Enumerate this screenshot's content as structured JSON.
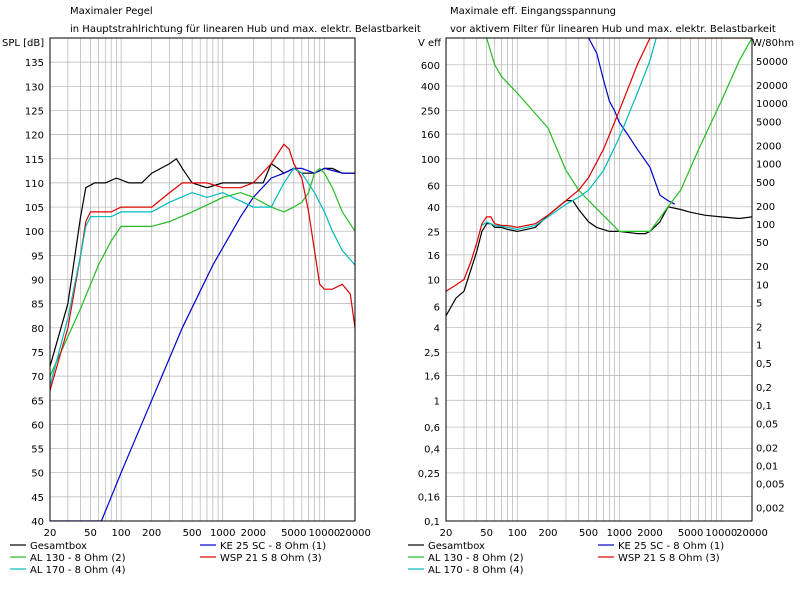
{
  "colors": {
    "gesamtbox": "#000000",
    "ke25": "#0000cc",
    "al130": "#22bb22",
    "wsp21": "#dd0000",
    "al170": "#00bbbb",
    "grid": "#b4b4b4",
    "frame": "#000000"
  },
  "chart_data": [
    {
      "type": "line",
      "title": "Maximaler Pegel",
      "subtitle": "in Hauptstrahlrichtung für linearen Hub und max. elektr. Belastbarkeit",
      "ylabel": "SPL [dB]",
      "xlabel": "",
      "xscale": "log",
      "xlim": [
        20,
        20000
      ],
      "ylim": [
        40,
        140
      ],
      "xticks": [
        20,
        50,
        100,
        200,
        500,
        1000,
        2000,
        5000,
        10000,
        20000
      ],
      "xtick_labels": [
        "20",
        "50",
        "100",
        "200",
        "500",
        "1000",
        "2000",
        "5000",
        "10000",
        "20000"
      ],
      "yticks": [
        40,
        45,
        50,
        55,
        60,
        65,
        70,
        75,
        80,
        85,
        90,
        95,
        100,
        105,
        110,
        115,
        120,
        125,
        130,
        135
      ],
      "grid": true,
      "legend": [
        "Gesamtbox",
        "KE 25 SC - 8 Ohm   (1)",
        "AL 130 - 8 Ohm (2)",
        "WSP 21 S 8 Ohm (3)",
        "AL 170 - 8 Ohm (4)"
      ],
      "series": [
        {
          "name": "Gesamtbox",
          "color": "gesamtbox",
          "points": [
            [
              20,
              72
            ],
            [
              30,
              85
            ],
            [
              40,
              103
            ],
            [
              45,
              109
            ],
            [
              55,
              110
            ],
            [
              70,
              110
            ],
            [
              90,
              111
            ],
            [
              120,
              110
            ],
            [
              160,
              110
            ],
            [
              200,
              112
            ],
            [
              300,
              114
            ],
            [
              350,
              115
            ],
            [
              400,
              113
            ],
            [
              500,
              110
            ],
            [
              700,
              109
            ],
            [
              1000,
              110
            ],
            [
              1500,
              110
            ],
            [
              2000,
              110
            ],
            [
              2500,
              110
            ],
            [
              3000,
              114
            ],
            [
              3500,
              113
            ],
            [
              4000,
              112
            ],
            [
              5000,
              113
            ],
            [
              6000,
              112
            ],
            [
              8000,
              112
            ],
            [
              10000,
              113
            ],
            [
              12000,
              113
            ],
            [
              15000,
              112
            ],
            [
              20000,
              112
            ]
          ]
        },
        {
          "name": "KE 25 SC - 8 Ohm   (1)",
          "color": "ke25",
          "points": [
            [
              20,
              40
            ],
            [
              64,
              40
            ],
            [
              100,
              50
            ],
            [
              200,
              65
            ],
            [
              400,
              80
            ],
            [
              800,
              93
            ],
            [
              1500,
              103
            ],
            [
              2000,
              107
            ],
            [
              3000,
              111
            ],
            [
              4000,
              112
            ],
            [
              5000,
              113
            ],
            [
              6000,
              113
            ],
            [
              8000,
              112
            ],
            [
              10000,
              113
            ],
            [
              15000,
              112
            ],
            [
              20000,
              112
            ]
          ]
        },
        {
          "name": "AL 130 - 8 Ohm (2)",
          "color": "al130",
          "points": [
            [
              20,
              70
            ],
            [
              40,
              84
            ],
            [
              60,
              93
            ],
            [
              80,
              98
            ],
            [
              100,
              101
            ],
            [
              150,
              101
            ],
            [
              200,
              101
            ],
            [
              300,
              102
            ],
            [
              500,
              104
            ],
            [
              800,
              106
            ],
            [
              1000,
              107
            ],
            [
              1500,
              108
            ],
            [
              2000,
              107
            ],
            [
              3000,
              105
            ],
            [
              4000,
              104
            ],
            [
              5000,
              105
            ],
            [
              6000,
              106
            ],
            [
              7000,
              108
            ],
            [
              8000,
              112
            ],
            [
              9000,
              113
            ],
            [
              10000,
              112
            ],
            [
              12000,
              109
            ],
            [
              15000,
              104
            ],
            [
              20000,
              100
            ]
          ]
        },
        {
          "name": "WSP 21 S 8 Ohm (3)",
          "color": "wsp21",
          "points": [
            [
              20,
              67
            ],
            [
              30,
              80
            ],
            [
              40,
              95
            ],
            [
              45,
              102
            ],
            [
              50,
              104
            ],
            [
              60,
              104
            ],
            [
              80,
              104
            ],
            [
              100,
              105
            ],
            [
              150,
              105
            ],
            [
              200,
              105
            ],
            [
              300,
              108
            ],
            [
              400,
              110
            ],
            [
              500,
              110
            ],
            [
              700,
              110
            ],
            [
              1000,
              109
            ],
            [
              1500,
              109
            ],
            [
              2000,
              110
            ],
            [
              3000,
              114
            ],
            [
              4000,
              118
            ],
            [
              4500,
              117
            ],
            [
              5000,
              114
            ],
            [
              6000,
              111
            ],
            [
              7000,
              104
            ],
            [
              8000,
              96
            ],
            [
              9000,
              89
            ],
            [
              10000,
              88
            ],
            [
              12000,
              88
            ],
            [
              15000,
              89
            ],
            [
              18000,
              87
            ],
            [
              20000,
              80
            ]
          ]
        },
        {
          "name": "AL 170 - 8 Ohm (4)",
          "color": "al170",
          "points": [
            [
              20,
              68
            ],
            [
              30,
              82
            ],
            [
              40,
              95
            ],
            [
              45,
              101
            ],
            [
              50,
              103
            ],
            [
              80,
              103
            ],
            [
              100,
              104
            ],
            [
              150,
              104
            ],
            [
              200,
              104
            ],
            [
              300,
              106
            ],
            [
              500,
              108
            ],
            [
              700,
              107
            ],
            [
              1000,
              108
            ],
            [
              2000,
              105
            ],
            [
              3000,
              105
            ],
            [
              4000,
              110
            ],
            [
              5000,
              113
            ],
            [
              6000,
              112
            ],
            [
              8000,
              108
            ],
            [
              10000,
              104
            ],
            [
              12000,
              100
            ],
            [
              15000,
              96
            ],
            [
              20000,
              93
            ]
          ]
        }
      ]
    },
    {
      "type": "line",
      "title": "Maximale eff. Eingangsspannung",
      "subtitle": "vor aktivem Filter für linearen Hub und max. elektr. Belastbarkeit",
      "ylabel": "V eff",
      "ylabel_right": "W/80hm",
      "xlabel": "",
      "xscale": "log",
      "yscale": "log",
      "xlim": [
        20,
        20000
      ],
      "ylim": [
        0.1,
        1000
      ],
      "xticks": [
        20,
        50,
        100,
        200,
        500,
        1000,
        2000,
        5000,
        10000,
        20000
      ],
      "xtick_labels": [
        "20",
        "50",
        "100",
        "200",
        "500",
        "1000",
        "2000",
        "5000",
        "10000",
        "20000"
      ],
      "yticks": [
        600,
        400,
        250,
        160,
        100,
        60,
        40,
        25,
        16,
        10,
        6,
        4,
        2.5,
        1.6,
        1,
        0.6,
        0.4,
        0.25,
        0.16,
        0.1
      ],
      "ytick_labels": [
        "600",
        "400",
        "250",
        "160",
        "100",
        "60",
        "40",
        "25",
        "16",
        "10",
        "6",
        "4",
        "2,5",
        "1,6",
        "1",
        "0,6",
        "0,4",
        "0,25",
        "0,16",
        "0,1"
      ],
      "yticks_right": [
        50000,
        20000,
        10000,
        5000,
        2000,
        1000,
        500,
        200,
        100,
        50,
        20,
        10,
        5,
        2,
        1,
        0.5,
        0.2,
        0.1,
        0.05,
        0.02,
        0.01,
        0.005,
        0.002
      ],
      "ytick_labels_right": [
        "50000",
        "20000",
        "10000",
        "5000",
        "2000",
        "1000",
        "500",
        "200",
        "100",
        "50",
        "20",
        "10",
        "5",
        "2",
        "1",
        "0,5",
        "0,2",
        "0,1",
        "0,05",
        "0,02",
        "0,01",
        "0,005",
        "0,002"
      ],
      "grid": true,
      "legend": [
        "Gesamtbox",
        "KE 25 SC - 8 Ohm   (1)",
        "AL 130 - 8 Ohm (2)",
        "WSP 21 S 8 Ohm (3)",
        "AL 170 - 8 Ohm (4)"
      ],
      "series": [
        {
          "name": "Gesamtbox",
          "color": "gesamtbox",
          "points": [
            [
              20,
              5
            ],
            [
              25,
              7
            ],
            [
              30,
              8
            ],
            [
              35,
              12
            ],
            [
              40,
              17
            ],
            [
              45,
              25
            ],
            [
              50,
              29
            ],
            [
              55,
              29
            ],
            [
              60,
              27
            ],
            [
              70,
              27
            ],
            [
              80,
              26
            ],
            [
              100,
              25
            ],
            [
              150,
              27
            ],
            [
              200,
              34
            ],
            [
              300,
              45
            ],
            [
              350,
              45
            ],
            [
              400,
              38
            ],
            [
              500,
              30
            ],
            [
              600,
              27
            ],
            [
              800,
              25
            ],
            [
              1000,
              25
            ],
            [
              1500,
              24
            ],
            [
              1800,
              24
            ],
            [
              2000,
              25
            ],
            [
              2500,
              30
            ],
            [
              3000,
              40
            ],
            [
              4000,
              38
            ],
            [
              5000,
              36
            ],
            [
              7000,
              34
            ],
            [
              10000,
              33
            ],
            [
              15000,
              32
            ],
            [
              20000,
              33
            ]
          ]
        },
        {
          "name": "KE 25 SC - 8 Ohm   (1)",
          "color": "ke25",
          "points": [
            [
              500,
              1000
            ],
            [
              600,
              750
            ],
            [
              700,
              450
            ],
            [
              800,
              300
            ],
            [
              900,
              250
            ],
            [
              1000,
              200
            ],
            [
              1200,
              160
            ],
            [
              1500,
              120
            ],
            [
              2000,
              85
            ],
            [
              2500,
              50
            ],
            [
              3000,
              45
            ],
            [
              3500,
              42
            ]
          ]
        },
        {
          "name": "AL 130 - 8 Ohm (2)",
          "color": "al130",
          "points": [
            [
              50,
              1000
            ],
            [
              60,
              600
            ],
            [
              70,
              480
            ],
            [
              100,
              350
            ],
            [
              200,
              180
            ],
            [
              300,
              80
            ],
            [
              400,
              55
            ],
            [
              500,
              45
            ],
            [
              1000,
              25
            ],
            [
              2000,
              25
            ],
            [
              3000,
              40
            ],
            [
              4000,
              55
            ],
            [
              6000,
              120
            ],
            [
              10000,
              300
            ],
            [
              15000,
              650
            ],
            [
              20000,
              1000
            ]
          ]
        },
        {
          "name": "WSP 21 S 8 Ohm (3)",
          "color": "wsp21",
          "points": [
            [
              20,
              8
            ],
            [
              25,
              9
            ],
            [
              30,
              10
            ],
            [
              35,
              14
            ],
            [
              40,
              20
            ],
            [
              45,
              29
            ],
            [
              50,
              33
            ],
            [
              55,
              33
            ],
            [
              60,
              29
            ],
            [
              70,
              28
            ],
            [
              80,
              28
            ],
            [
              100,
              27
            ],
            [
              150,
              29
            ],
            [
              200,
              34
            ],
            [
              300,
              45
            ],
            [
              400,
              55
            ],
            [
              500,
              70
            ],
            [
              700,
              120
            ],
            [
              1000,
              250
            ],
            [
              1500,
              600
            ],
            [
              2000,
              1000
            ],
            [
              20000,
              1000
            ]
          ]
        },
        {
          "name": "AL 170 - 8 Ohm (4)",
          "color": "al170",
          "points": [
            [
              45,
              28
            ],
            [
              50,
              30
            ],
            [
              60,
              28
            ],
            [
              80,
              27
            ],
            [
              100,
              26
            ],
            [
              150,
              28
            ],
            [
              200,
              33
            ],
            [
              300,
              42
            ],
            [
              400,
              48
            ],
            [
              500,
              55
            ],
            [
              700,
              80
            ],
            [
              1000,
              150
            ],
            [
              1500,
              350
            ],
            [
              2000,
              650
            ],
            [
              2300,
              1000
            ]
          ]
        }
      ]
    }
  ]
}
